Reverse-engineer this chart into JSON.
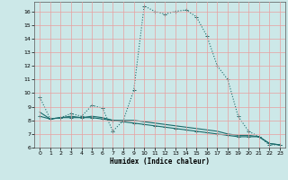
{
  "xlabel": "Humidex (Indice chaleur)",
  "ylabel": "",
  "xlim": [
    -0.5,
    23.5
  ],
  "ylim": [
    6,
    16.7
  ],
  "yticks": [
    6,
    7,
    8,
    9,
    10,
    11,
    12,
    13,
    14,
    15,
    16
  ],
  "xticks": [
    0,
    1,
    2,
    3,
    4,
    5,
    6,
    7,
    8,
    9,
    10,
    11,
    12,
    13,
    14,
    15,
    16,
    17,
    18,
    19,
    20,
    21,
    22,
    23
  ],
  "bg_color": "#cce8e8",
  "grid_color": "#e8a0a0",
  "line_color": "#1a6b6b",
  "line1_x": [
    0,
    1,
    2,
    3,
    4,
    5,
    6,
    7,
    8,
    9,
    10,
    11,
    12,
    13,
    14,
    15,
    16,
    17,
    18,
    19,
    20,
    21,
    22,
    23
  ],
  "line1_y": [
    9.7,
    8.1,
    8.2,
    8.5,
    8.3,
    9.1,
    8.9,
    7.2,
    8.0,
    10.2,
    16.4,
    16.0,
    15.8,
    16.0,
    16.1,
    15.6,
    14.2,
    12.0,
    11.0,
    8.3,
    7.2,
    6.8,
    6.2,
    6.2
  ],
  "line2_x": [
    0,
    1,
    2,
    3,
    4,
    5,
    6,
    7,
    8,
    9,
    10,
    11,
    12,
    13,
    14,
    15,
    16,
    17,
    18,
    19,
    20,
    21,
    22,
    23
  ],
  "line2_y": [
    8.3,
    8.1,
    8.2,
    8.2,
    8.2,
    8.2,
    8.1,
    8.0,
    7.9,
    7.8,
    7.7,
    7.6,
    7.5,
    7.4,
    7.3,
    7.2,
    7.1,
    7.0,
    6.9,
    6.8,
    6.8,
    6.8,
    6.3,
    6.2
  ],
  "line3_x": [
    0,
    1,
    2,
    3,
    4,
    5,
    6,
    7,
    8,
    9,
    10,
    11,
    12,
    13,
    14,
    15,
    16,
    17,
    18,
    19,
    20,
    21,
    22,
    23
  ],
  "line3_y": [
    8.6,
    8.1,
    8.2,
    8.3,
    8.2,
    8.3,
    8.2,
    8.0,
    8.0,
    8.0,
    7.9,
    7.8,
    7.7,
    7.6,
    7.5,
    7.4,
    7.3,
    7.2,
    7.0,
    6.9,
    6.9,
    6.8,
    6.3,
    6.2
  ]
}
